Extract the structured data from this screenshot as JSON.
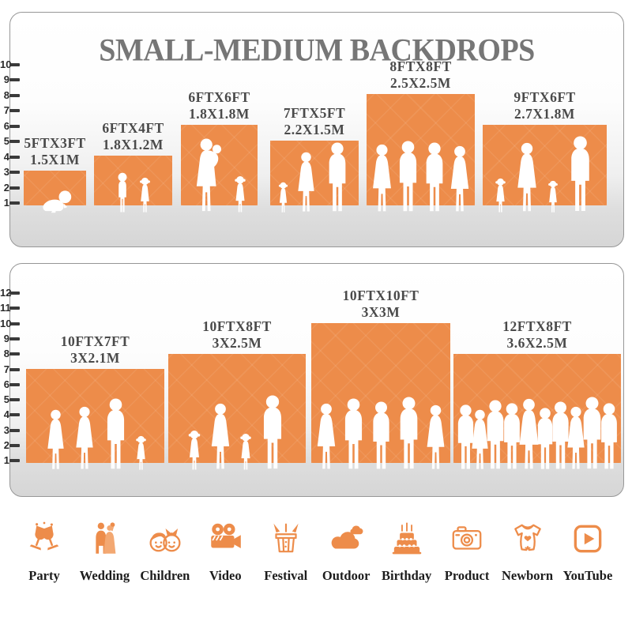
{
  "title": "SMALL-MEDIUM BACKDROPS",
  "colors": {
    "accent_orange": "#ED8C4A",
    "title_gray": "#767676",
    "label_gray": "#4a4a4a",
    "ruler_tick": "#3a3a3a",
    "category_label": "#1c1c1c"
  },
  "chart_data": {
    "type": "bar",
    "title": "SMALL-MEDIUM BACKDROPS",
    "axis_unit": "feet",
    "panels": [
      {
        "name": "small-medium-sizes",
        "ruler_range_ft": [
          1,
          10
        ],
        "backdrops": [
          {
            "size_ft": "5FTX3FT",
            "size_m": "1.5X1M",
            "width_ft": 5,
            "height_ft": 3,
            "figures": [
              "baby"
            ]
          },
          {
            "size_ft": "6FTX4FT",
            "size_m": "1.8X1.2M",
            "width_ft": 6,
            "height_ft": 4,
            "figures": [
              "boy",
              "girl"
            ]
          },
          {
            "size_ft": "6FTX6FT",
            "size_m": "1.8X1.8M",
            "width_ft": 6,
            "height_ft": 6,
            "figures": [
              "woman-holding-baby",
              "girl"
            ]
          },
          {
            "size_ft": "7FTX5FT",
            "size_m": "2.2X1.5M",
            "width_ft": 7,
            "height_ft": 5,
            "figures": [
              "girl",
              "woman",
              "man"
            ]
          },
          {
            "size_ft": "8FTX8FT",
            "size_m": "2.5X2.5M",
            "width_ft": 8,
            "height_ft": 8,
            "figures": [
              "woman",
              "man",
              "man",
              "woman"
            ]
          },
          {
            "size_ft": "9FTX6FT",
            "size_m": "2.7X1.8M",
            "width_ft": 9,
            "height_ft": 6,
            "figures": [
              "girl",
              "woman",
              "girl",
              "man"
            ]
          }
        ]
      },
      {
        "name": "medium-large-sizes",
        "ruler_range_ft": [
          1,
          12
        ],
        "backdrops": [
          {
            "size_ft": "10FTX7FT",
            "size_m": "3X2.1M",
            "width_ft": 10,
            "height_ft": 7,
            "figures": [
              "woman",
              "woman",
              "man",
              "girl"
            ]
          },
          {
            "size_ft": "10FTX8FT",
            "size_m": "3X2.5M",
            "width_ft": 10,
            "height_ft": 8,
            "figures": [
              "girl",
              "woman",
              "girl",
              "man"
            ]
          },
          {
            "size_ft": "10FTX10FT",
            "size_m": "3X3M",
            "width_ft": 10,
            "height_ft": 10,
            "figures": [
              "woman",
              "man",
              "man",
              "man",
              "woman"
            ]
          },
          {
            "size_ft": "12FTX8FT",
            "size_m": "3.6X2.5M",
            "width_ft": 12,
            "height_ft": 8,
            "figures": [
              "man",
              "woman",
              "man",
              "man",
              "woman",
              "man",
              "man",
              "woman",
              "man",
              "man"
            ]
          }
        ]
      }
    ]
  },
  "categories": [
    {
      "label": "Party",
      "icon": "party-icon"
    },
    {
      "label": "Wedding",
      "icon": "wedding-icon"
    },
    {
      "label": "Children",
      "icon": "children-icon"
    },
    {
      "label": "Video",
      "icon": "video-icon"
    },
    {
      "label": "Festival",
      "icon": "festival-icon"
    },
    {
      "label": "Outdoor",
      "icon": "outdoor-icon"
    },
    {
      "label": "Birthday",
      "icon": "birthday-icon"
    },
    {
      "label": "Product",
      "icon": "product-icon"
    },
    {
      "label": "Newborn",
      "icon": "newborn-icon"
    },
    {
      "label": "YouTube",
      "icon": "youtube-icon"
    }
  ]
}
